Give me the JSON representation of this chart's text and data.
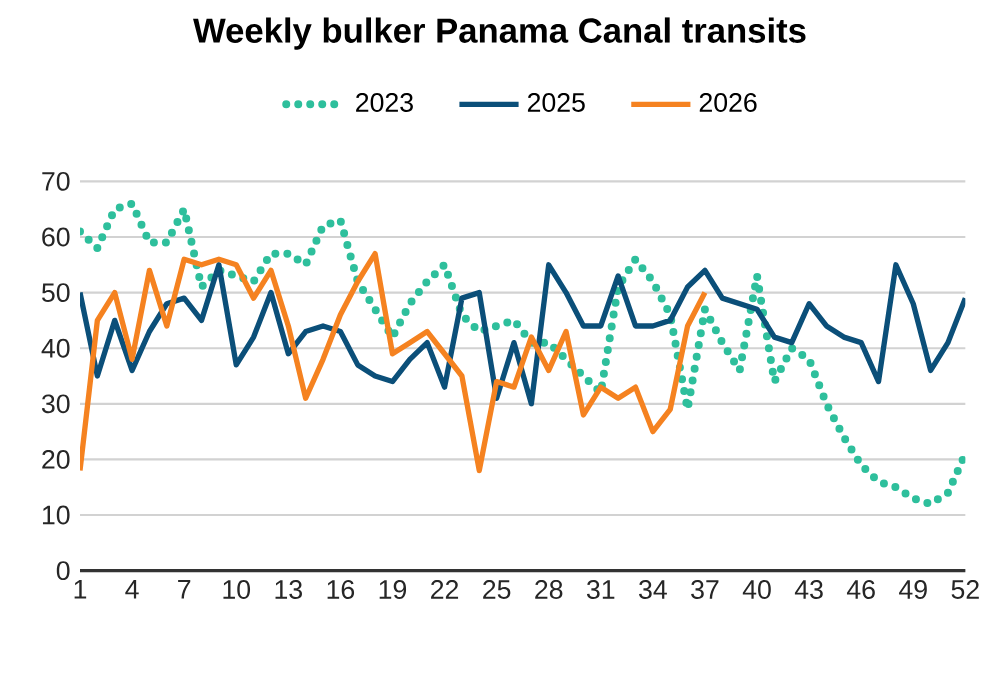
{
  "chart_data": {
    "type": "line",
    "title": "Weekly bulker Panama Canal transits",
    "x": [
      1,
      2,
      3,
      4,
      5,
      6,
      7,
      8,
      9,
      10,
      11,
      12,
      13,
      14,
      15,
      16,
      17,
      18,
      19,
      20,
      21,
      22,
      23,
      24,
      25,
      26,
      27,
      28,
      29,
      30,
      31,
      32,
      33,
      34,
      35,
      36,
      37,
      38,
      39,
      40,
      41,
      42,
      43,
      44,
      45,
      46,
      47,
      48,
      49,
      50,
      51,
      52
    ],
    "series": [
      {
        "name": "2023",
        "color": "#2ebf9c",
        "line_style": "dotted",
        "values": [
          61,
          58,
          65,
          66,
          59,
          59,
          65,
          51,
          54,
          53,
          52,
          57,
          57,
          55,
          62,
          63,
          52,
          47,
          42,
          48,
          52,
          55,
          46,
          43,
          44,
          45,
          41,
          41,
          38,
          35,
          32,
          51,
          56,
          52,
          46,
          29,
          47,
          41,
          36,
          53,
          34,
          40,
          38,
          30,
          24,
          19,
          16,
          15,
          13,
          12,
          14,
          21
        ]
      },
      {
        "name": "2025",
        "color": "#0b4f79",
        "line_style": "solid",
        "values": [
          50,
          35,
          45,
          36,
          43,
          48,
          49,
          45,
          55,
          37,
          42,
          50,
          39,
          43,
          44,
          43,
          37,
          35,
          34,
          38,
          41,
          33,
          49,
          50,
          31,
          41,
          30,
          55,
          50,
          44,
          44,
          53,
          44,
          44,
          45,
          51,
          54,
          49,
          48,
          47,
          42,
          41,
          48,
          44,
          42,
          41,
          34,
          55,
          48,
          36,
          41,
          49
        ]
      },
      {
        "name": "2026",
        "color": "#f58220",
        "line_style": "solid",
        "values": [
          18,
          45,
          50,
          38,
          54,
          44,
          56,
          55,
          56,
          55,
          49,
          54,
          44,
          31,
          38,
          46,
          52,
          57,
          39,
          41,
          43,
          39,
          35,
          18,
          34,
          33,
          42,
          36,
          43,
          28,
          33,
          31,
          33,
          25,
          29,
          44,
          50,
          null,
          null,
          null,
          null,
          null,
          null,
          null,
          null,
          null,
          null,
          null,
          null,
          null,
          null,
          null
        ]
      }
    ],
    "xlim": [
      1,
      52
    ],
    "xticks": [
      1,
      4,
      7,
      10,
      13,
      16,
      19,
      22,
      25,
      28,
      31,
      34,
      37,
      40,
      43,
      46,
      49,
      52
    ],
    "ylim": [
      0,
      70
    ],
    "yticks": [
      0,
      10,
      20,
      30,
      40,
      50,
      60,
      70
    ],
    "grid": "y",
    "legend": "top",
    "marker": "none"
  }
}
